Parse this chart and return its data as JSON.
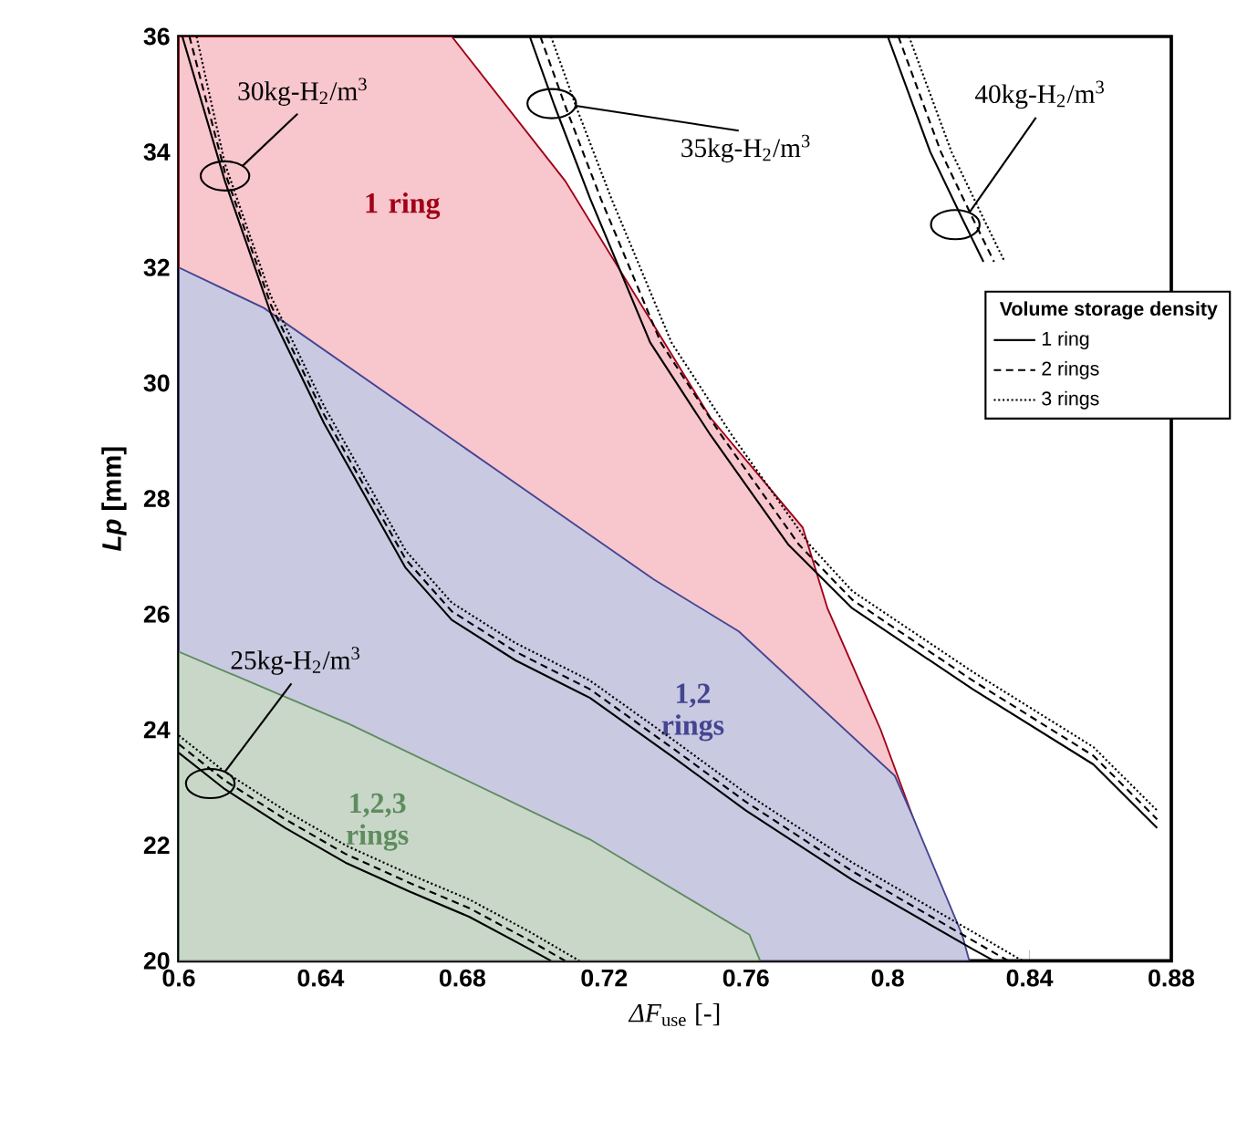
{
  "chart_data": {
    "type": "line",
    "xlabel": "*ΔF*$_{use}$ [-]",
    "ylabel": "*Lp* [mm]",
    "legend_title": "Volume storage density",
    "legend": "top right",
    "grid": false,
    "marker": "none",
    "xlim": [
      0.6,
      0.88
    ],
    "xticks": [
      0.6,
      0.64,
      0.68,
      0.72,
      0.76,
      0.8,
      0.84,
      0.88
    ],
    "ylim": [
      20,
      36
    ],
    "yticks": [
      20,
      22,
      24,
      26,
      28,
      30,
      32,
      34,
      36
    ],
    "series": [
      {
        "type": "area",
        "name": "1 ring",
        "color": "#f8c6cd",
        "x": [
          0.6,
          0.677,
          0.709,
          0.75,
          0.776,
          0.783,
          0.798,
          0.807,
          0.822
        ],
        "values": [
          36,
          36,
          33.5,
          29.4,
          27.5,
          26.1,
          24.0,
          22.5,
          20
        ]
      },
      {
        "type": "area",
        "name": "1,2 rings",
        "color": "#c9c9e1",
        "x": [
          0.6,
          0.624,
          0.734,
          0.758,
          0.802,
          0.807,
          0.821,
          0.823
        ],
        "values": [
          32.0,
          31.3,
          26.6,
          25.7,
          23.2,
          22.5,
          20.45,
          20
        ]
      },
      {
        "type": "area",
        "name": "1,2,3 rings",
        "color": "#c9d7c9",
        "x": [
          0.6,
          0.648,
          0.716,
          0.761,
          0.764
        ],
        "values": [
          25.35,
          24.1,
          22.1,
          20.45,
          20
        ]
      },
      {
        "name": "1 ring",
        "color": "#000000",
        "line_style": "solid",
        "x": [
          0.6,
          0.613,
          0.63,
          0.647,
          0.665,
          0.682,
          0.699,
          0.705,
          null,
          0.601,
          0.613,
          0.626,
          0.641,
          0.664,
          0.677,
          0.695,
          0.716,
          0.74,
          0.76,
          0.79,
          0.824,
          0.83,
          null,
          0.699,
          0.706,
          0.716,
          0.733,
          0.75,
          0.772,
          0.79,
          0.824,
          0.858,
          0.876,
          null,
          0.8,
          0.812,
          0.821,
          0.827
        ],
        "values": [
          23.6,
          22.97,
          22.3,
          21.7,
          21.2,
          20.76,
          20.2,
          20.0,
          null,
          36,
          33.5,
          31.2,
          29.3,
          26.8,
          25.9,
          25.2,
          24.55,
          23.5,
          22.6,
          21.4,
          20.2,
          20.0,
          null,
          36,
          34.8,
          33.2,
          30.7,
          29.1,
          27.2,
          26.1,
          24.7,
          23.4,
          22.3,
          null,
          36,
          34.0,
          32.85,
          32.1
        ]
      },
      {
        "name": "2 rings",
        "color": "#000000",
        "line_style": "dashed",
        "x": [
          0.6,
          0.613,
          0.63,
          0.647,
          0.665,
          0.682,
          0.699,
          0.709,
          null,
          0.603,
          0.613,
          0.626,
          0.641,
          0.664,
          0.677,
          0.695,
          0.716,
          0.74,
          0.76,
          0.79,
          0.824,
          0.834,
          null,
          0.702,
          0.709,
          0.719,
          0.736,
          0.753,
          0.775,
          0.79,
          0.824,
          0.858,
          0.876,
          null,
          0.803,
          0.815,
          0.824,
          0.83
        ],
        "values": [
          23.75,
          23.12,
          22.45,
          21.85,
          21.35,
          20.91,
          20.35,
          20.0,
          null,
          36,
          33.65,
          31.35,
          29.45,
          26.95,
          26.05,
          25.35,
          24.7,
          23.65,
          22.75,
          21.55,
          20.35,
          20.0,
          null,
          36,
          34.8,
          33.2,
          30.7,
          29.1,
          27.2,
          26.25,
          24.85,
          23.55,
          22.45,
          null,
          36,
          34,
          32.85,
          32.1
        ]
      },
      {
        "name": "3 rings",
        "color": "#000000",
        "line_style": "dotted",
        "x": [
          0.6,
          0.613,
          0.63,
          0.647,
          0.665,
          0.682,
          0.699,
          0.713,
          null,
          0.605,
          0.613,
          0.626,
          0.641,
          0.664,
          0.677,
          0.695,
          0.716,
          0.74,
          0.76,
          0.79,
          0.824,
          0.838,
          null,
          0.705,
          0.712,
          0.722,
          0.739,
          0.756,
          0.778,
          0.79,
          0.824,
          0.858,
          0.876,
          null,
          0.806,
          0.818,
          0.827,
          0.833
        ],
        "values": [
          23.9,
          23.27,
          22.6,
          22.0,
          21.5,
          21.06,
          20.5,
          20.0,
          null,
          36,
          33.8,
          31.5,
          29.6,
          27.1,
          26.2,
          25.5,
          24.85,
          23.8,
          22.9,
          21.7,
          20.5,
          20.0,
          null,
          36,
          34.8,
          33.2,
          30.7,
          29.1,
          27.2,
          26.4,
          25.0,
          23.7,
          22.6,
          null,
          36,
          34,
          32.85,
          32.1
        ]
      }
    ],
    "annotations": [
      {
        "text": "30kg-H$_{2}$/m$^{3}$",
        "x": 0.618,
        "y": 33.76
      },
      {
        "text": "35kg-H$_{2}$/m$^{3}$",
        "x": 0.712,
        "y": 34.8
      },
      {
        "text": "40kg-H$_{2}$/m$^{3}$",
        "x": 0.823,
        "y": 32.95
      },
      {
        "text": "25kg-H$_{2}$/m$^{3}$",
        "x": 0.613,
        "y": 23.27
      }
    ]
  }
}
